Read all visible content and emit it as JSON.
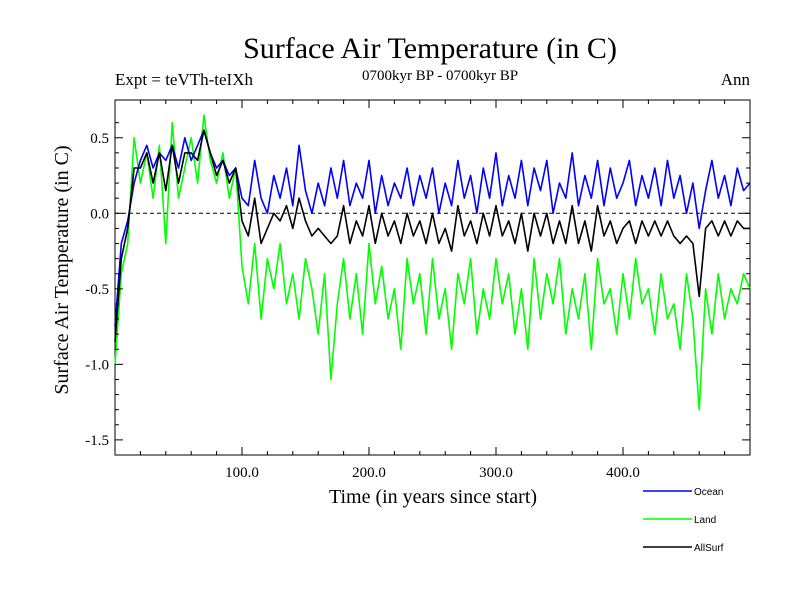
{
  "chart_data": {
    "type": "line",
    "title": "Surface Air Temperature (in C)",
    "subtitle": "0700kyr BP - 0700kyr BP",
    "left_label": "Expt = teVTh-teIXh",
    "right_label": "Ann",
    "xlabel": "Time (in years since start)",
    "ylabel": "Surface Air Temperature (in C)",
    "xlim": [
      0,
      500
    ],
    "ylim": [
      -1.6,
      0.75
    ],
    "xticks": [
      100,
      200,
      300,
      400
    ],
    "xtick_labels": [
      "100.0",
      "200.0",
      "300.0",
      "400.0"
    ],
    "yticks": [
      0.5,
      0.0,
      -0.5,
      -1.0,
      -1.5
    ],
    "ytick_labels": [
      "0.5",
      "0.0",
      "-0.5",
      "-1.0",
      "-1.5"
    ],
    "zero_line": true,
    "legend_position": "bottom-right",
    "series": [
      {
        "name": "Ocean",
        "color": "#0000ff",
        "x": [
          0,
          5,
          10,
          15,
          20,
          25,
          30,
          35,
          40,
          45,
          50,
          55,
          60,
          65,
          70,
          75,
          80,
          85,
          90,
          95,
          100,
          105,
          110,
          115,
          120,
          125,
          130,
          135,
          140,
          145,
          150,
          155,
          160,
          165,
          170,
          175,
          180,
          185,
          190,
          195,
          200,
          205,
          210,
          215,
          220,
          225,
          230,
          235,
          240,
          245,
          250,
          255,
          260,
          265,
          270,
          275,
          280,
          285,
          290,
          295,
          300,
          305,
          310,
          315,
          320,
          325,
          330,
          335,
          340,
          345,
          350,
          355,
          360,
          365,
          370,
          375,
          380,
          385,
          390,
          395,
          400,
          405,
          410,
          415,
          420,
          425,
          430,
          435,
          440,
          445,
          450,
          455,
          460,
          465,
          470,
          475,
          480,
          485,
          490,
          495,
          500
        ],
        "y": [
          -0.75,
          -0.2,
          -0.05,
          0.2,
          0.35,
          0.45,
          0.3,
          0.4,
          0.35,
          0.45,
          0.3,
          0.5,
          0.35,
          0.45,
          0.55,
          0.4,
          0.3,
          0.35,
          0.25,
          0.3,
          0.1,
          0.05,
          0.35,
          0.1,
          0.0,
          0.25,
          0.1,
          0.3,
          0.05,
          0.45,
          0.15,
          0.0,
          0.2,
          0.05,
          0.3,
          0.1,
          0.35,
          0.05,
          0.2,
          0.1,
          0.35,
          0.0,
          0.25,
          0.05,
          0.2,
          0.1,
          0.3,
          0.05,
          0.25,
          0.1,
          0.3,
          0.0,
          0.2,
          0.05,
          0.35,
          0.1,
          0.25,
          0.0,
          0.3,
          0.1,
          0.4,
          0.05,
          0.25,
          0.1,
          0.35,
          0.05,
          0.3,
          0.15,
          0.35,
          0.0,
          0.2,
          0.1,
          0.4,
          0.05,
          0.25,
          0.1,
          0.35,
          0.05,
          0.3,
          0.1,
          0.2,
          0.35,
          0.05,
          0.25,
          0.1,
          0.3,
          0.05,
          0.35,
          0.1,
          0.25,
          0.0,
          0.2,
          -0.1,
          0.15,
          0.35,
          0.1,
          0.25,
          0.05,
          0.3,
          0.15,
          0.2
        ]
      },
      {
        "name": "Land",
        "color": "#00ff00",
        "x": [
          0,
          5,
          10,
          15,
          20,
          25,
          30,
          35,
          40,
          45,
          50,
          55,
          60,
          65,
          70,
          75,
          80,
          85,
          90,
          95,
          100,
          105,
          110,
          115,
          120,
          125,
          130,
          135,
          140,
          145,
          150,
          155,
          160,
          165,
          170,
          175,
          180,
          185,
          190,
          195,
          200,
          205,
          210,
          215,
          220,
          225,
          230,
          235,
          240,
          245,
          250,
          255,
          260,
          265,
          270,
          275,
          280,
          285,
          290,
          295,
          300,
          305,
          310,
          315,
          320,
          325,
          330,
          335,
          340,
          345,
          350,
          355,
          360,
          365,
          370,
          375,
          380,
          385,
          390,
          395,
          400,
          405,
          410,
          415,
          420,
          425,
          430,
          435,
          440,
          445,
          450,
          455,
          460,
          465,
          470,
          475,
          480,
          485,
          490,
          495,
          500
        ],
        "y": [
          -1.0,
          -0.4,
          -0.2,
          0.5,
          0.2,
          0.4,
          0.1,
          0.45,
          -0.2,
          0.6,
          0.1,
          0.3,
          0.5,
          0.2,
          0.65,
          0.35,
          0.2,
          0.4,
          0.1,
          0.3,
          -0.35,
          -0.6,
          -0.2,
          -0.7,
          -0.3,
          -0.5,
          -0.2,
          -0.6,
          -0.4,
          -0.7,
          -0.3,
          -0.5,
          -0.8,
          -0.4,
          -1.1,
          -0.6,
          -0.3,
          -0.7,
          -0.4,
          -0.8,
          -0.2,
          -0.6,
          -0.35,
          -0.7,
          -0.5,
          -0.9,
          -0.3,
          -0.6,
          -0.4,
          -0.8,
          -0.3,
          -0.7,
          -0.5,
          -0.9,
          -0.4,
          -0.6,
          -0.3,
          -0.8,
          -0.5,
          -0.7,
          -0.3,
          -0.6,
          -0.4,
          -0.8,
          -0.5,
          -0.9,
          -0.3,
          -0.7,
          -0.4,
          -0.6,
          -0.3,
          -0.8,
          -0.5,
          -0.7,
          -0.4,
          -0.9,
          -0.3,
          -0.6,
          -0.5,
          -0.8,
          -0.4,
          -0.7,
          -0.3,
          -0.6,
          -0.5,
          -0.8,
          -0.4,
          -0.7,
          -0.6,
          -0.9,
          -0.4,
          -0.7,
          -1.3,
          -0.5,
          -0.8,
          -0.4,
          -0.7,
          -0.5,
          -0.6,
          -0.4,
          -0.5
        ]
      },
      {
        "name": "AllSurf",
        "color": "#000000",
        "x": [
          0,
          5,
          10,
          15,
          20,
          25,
          30,
          35,
          40,
          45,
          50,
          55,
          60,
          65,
          70,
          75,
          80,
          85,
          90,
          95,
          100,
          105,
          110,
          115,
          120,
          125,
          130,
          135,
          140,
          145,
          150,
          155,
          160,
          165,
          170,
          175,
          180,
          185,
          190,
          195,
          200,
          205,
          210,
          215,
          220,
          225,
          230,
          235,
          240,
          245,
          250,
          255,
          260,
          265,
          270,
          275,
          280,
          285,
          290,
          295,
          300,
          305,
          310,
          315,
          320,
          325,
          330,
          335,
          340,
          345,
          350,
          355,
          360,
          365,
          370,
          375,
          380,
          385,
          390,
          395,
          400,
          405,
          410,
          415,
          420,
          425,
          430,
          435,
          440,
          445,
          450,
          455,
          460,
          465,
          470,
          475,
          480,
          485,
          490,
          495,
          500
        ],
        "y": [
          -0.85,
          -0.3,
          -0.1,
          0.3,
          0.3,
          0.4,
          0.2,
          0.4,
          0.15,
          0.45,
          0.2,
          0.4,
          0.4,
          0.35,
          0.55,
          0.4,
          0.25,
          0.35,
          0.2,
          0.3,
          -0.05,
          -0.15,
          0.1,
          -0.2,
          -0.1,
          0.0,
          -0.05,
          0.05,
          -0.1,
          0.1,
          -0.05,
          -0.15,
          -0.1,
          -0.15,
          -0.2,
          -0.15,
          0.05,
          -0.2,
          -0.05,
          -0.15,
          0.05,
          -0.2,
          0.0,
          -0.15,
          -0.05,
          -0.2,
          0.0,
          -0.15,
          -0.05,
          -0.2,
          0.0,
          -0.2,
          -0.1,
          -0.25,
          0.05,
          -0.15,
          -0.05,
          -0.2,
          0.0,
          -0.15,
          0.05,
          -0.15,
          -0.05,
          -0.2,
          0.0,
          -0.25,
          0.0,
          -0.15,
          0.0,
          -0.2,
          -0.05,
          -0.2,
          0.05,
          -0.2,
          -0.05,
          -0.25,
          0.05,
          -0.15,
          -0.05,
          -0.2,
          -0.1,
          -0.05,
          -0.2,
          -0.05,
          -0.15,
          -0.05,
          -0.15,
          -0.05,
          -0.15,
          -0.2,
          -0.15,
          -0.2,
          -0.55,
          -0.1,
          -0.05,
          -0.15,
          -0.05,
          -0.15,
          -0.05,
          -0.1,
          -0.1
        ]
      }
    ]
  }
}
